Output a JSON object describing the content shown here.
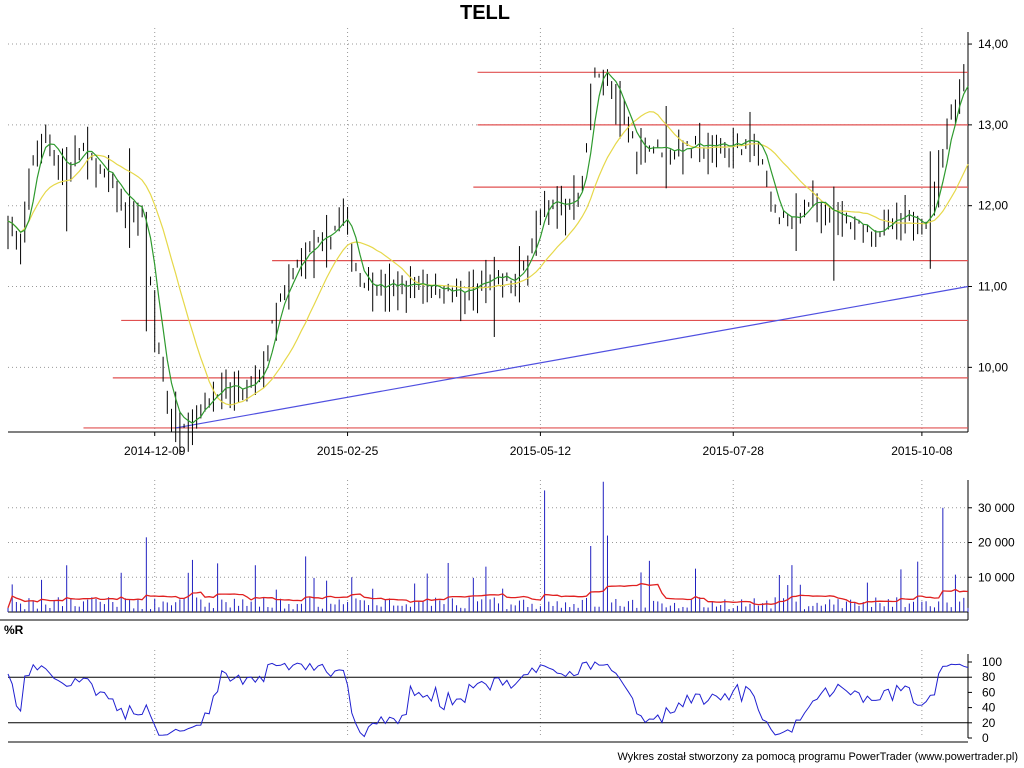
{
  "title": "TELL",
  "footer": "Wykres został stworzony za pomocą programu PowerTrader (www.powertrader.pl)",
  "colors": {
    "price_bar": "#000000",
    "ma_fast": "#2e9a2e",
    "ma_slow": "#e6d84a",
    "support_lines": "#e05050",
    "trend_line": "#5050e0",
    "volume_bars": "#2020c0",
    "volume_avg": "#e02020",
    "williams_r": "#2020d0",
    "grid": "#999999"
  },
  "chart_data": [
    {
      "type": "ohlc",
      "title": "TELL",
      "x_tick_labels": [
        "2014-12-09",
        "2015-02-25",
        "2015-05-12",
        "2015-07-28",
        "2015-10-08"
      ],
      "y_tick_labels": [
        "10,00",
        "11,00",
        "12,00",
        "13,00",
        "14,00"
      ],
      "ylim": [
        9.2,
        14.05
      ],
      "grid": true,
      "horizontal_levels": [
        9.25,
        9.87,
        10.58,
        11.32,
        12.23,
        13.0,
        13.65
      ],
      "trend_line": {
        "from": [
          40,
          9.25
        ],
        "to": [
          215,
          11.0
        ]
      },
      "moving_averages": [
        "fast",
        "slow"
      ]
    },
    {
      "type": "bar",
      "title": "",
      "y_tick_labels": [
        "10 000",
        "20 000",
        "30 000"
      ],
      "ylim": [
        0,
        38000
      ],
      "grid": true,
      "overlay": "moving_average"
    },
    {
      "type": "line",
      "title": "%R",
      "y_tick_labels": [
        "0",
        "20",
        "40",
        "60",
        "80",
        "100"
      ],
      "ylim": [
        0,
        100
      ],
      "reference_levels": [
        20,
        80
      ],
      "grid": true
    }
  ]
}
